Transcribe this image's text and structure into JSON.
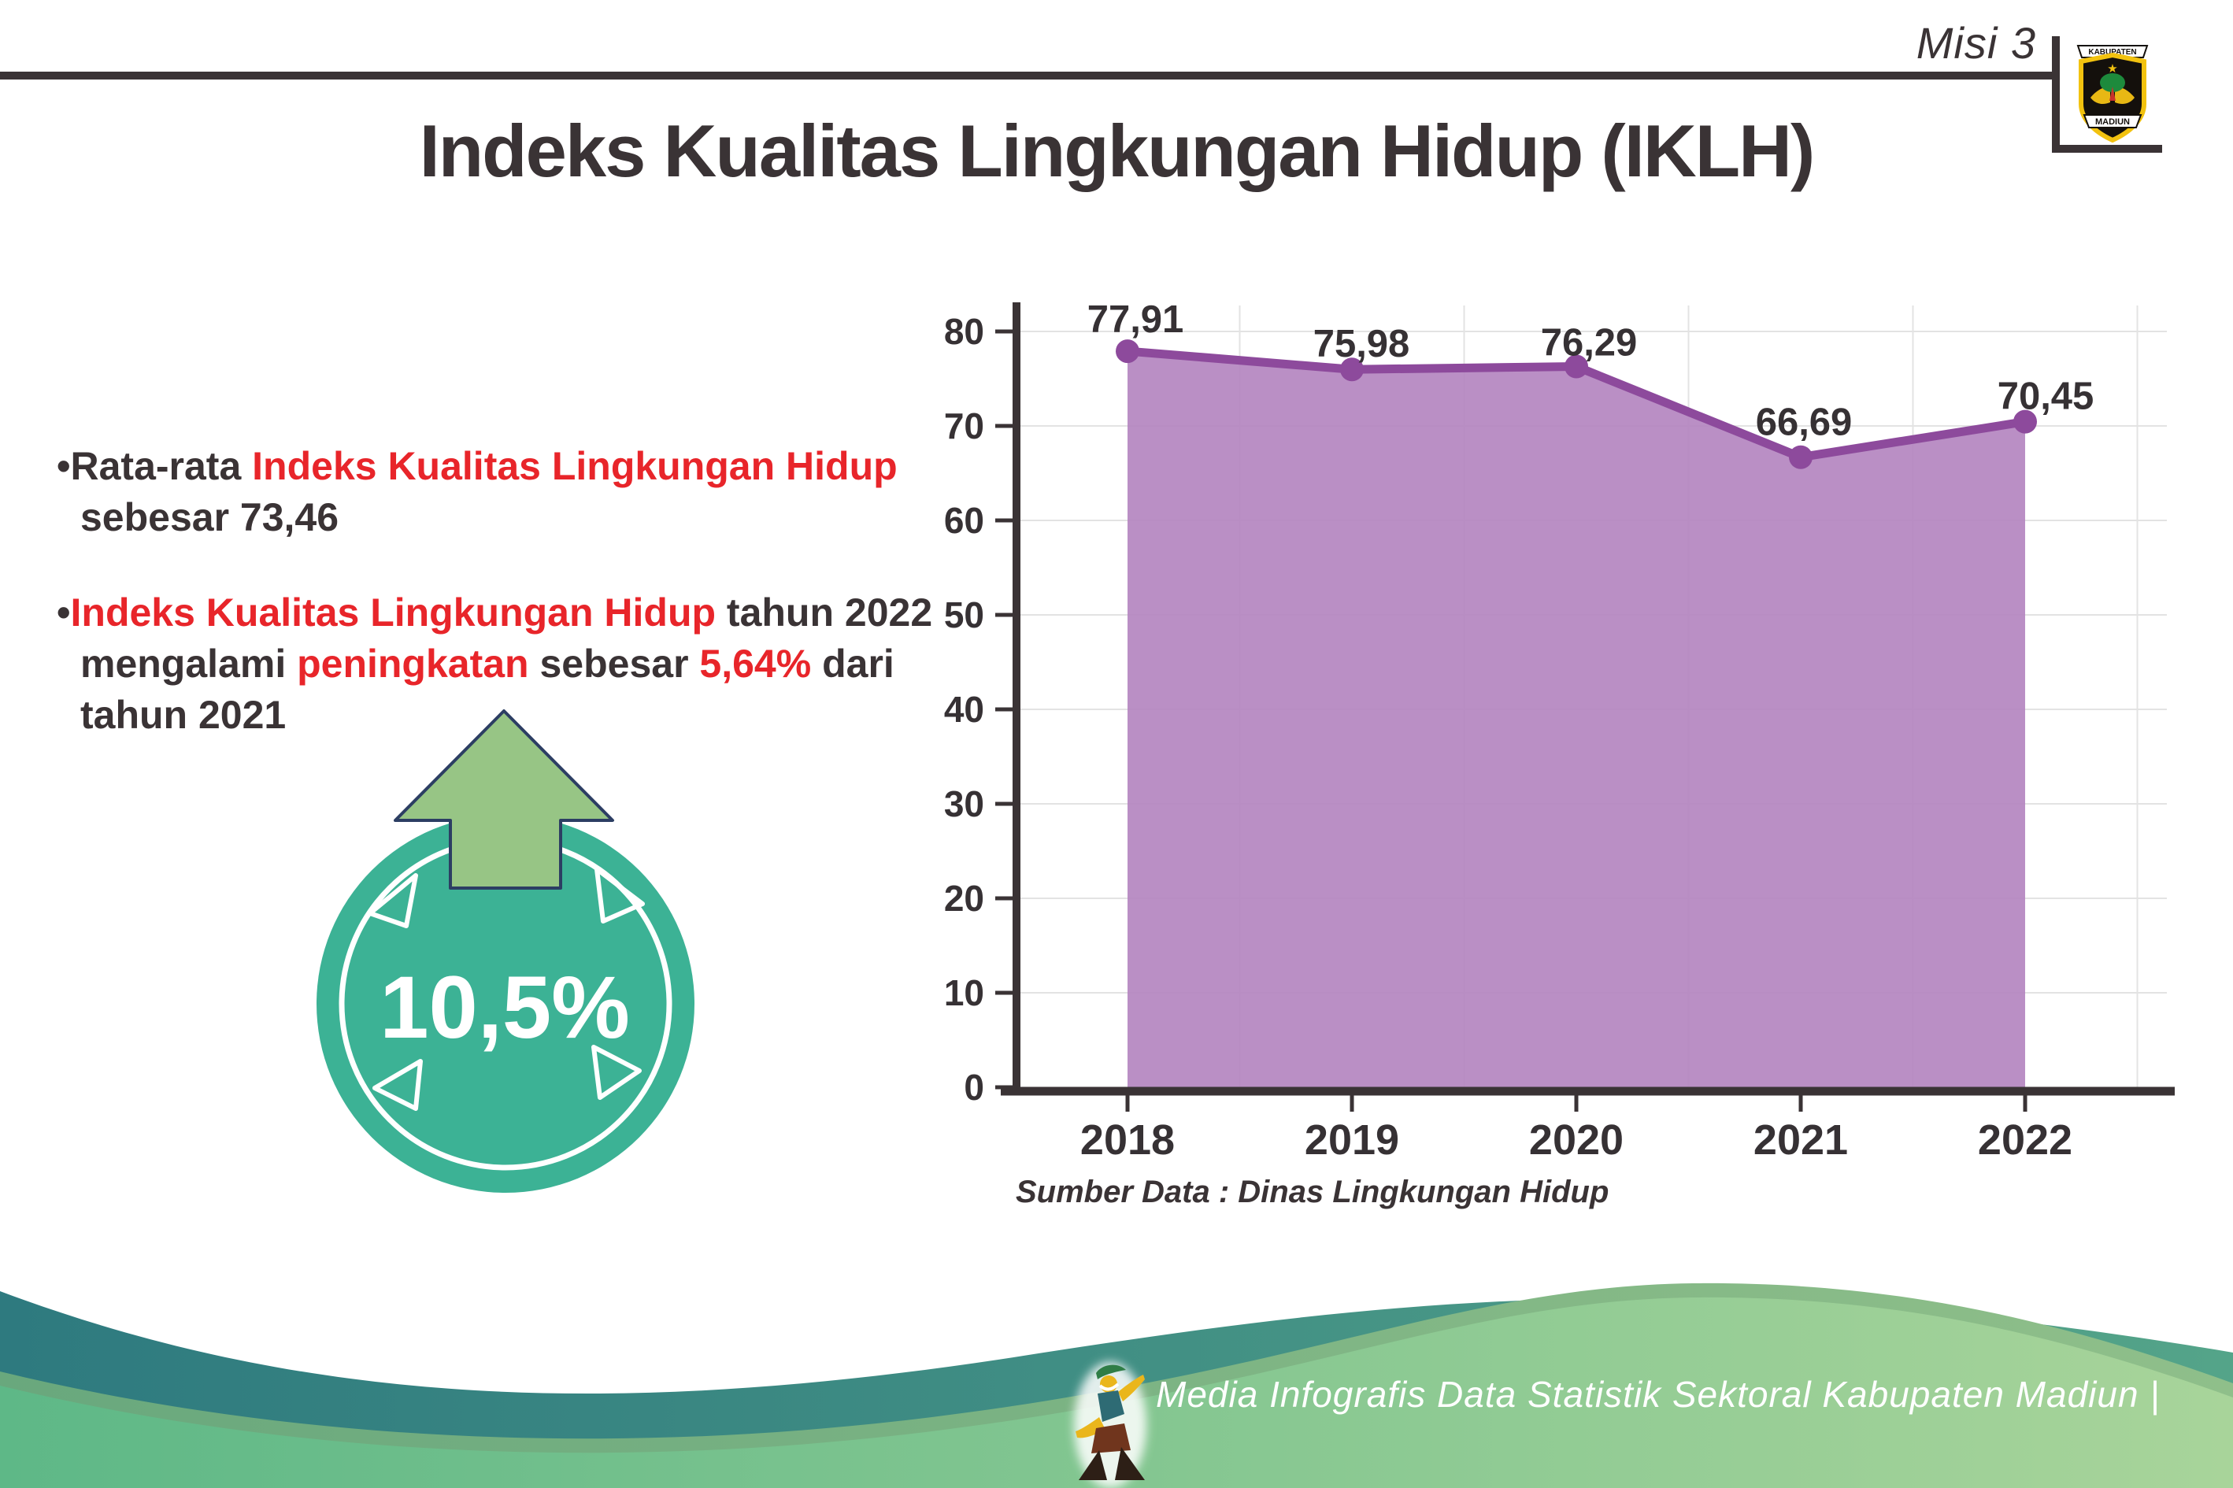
{
  "header": {
    "misi": "Misi 3",
    "logo": {
      "top": "KABUPATEN",
      "bottom": "MADIUN"
    }
  },
  "title": "Indeks Kualitas Lingkungan Hidup (IKLH)",
  "bullets": {
    "marker": "•",
    "items": [
      {
        "segments": [
          {
            "text": "Rata-rata ",
            "tone": "dark"
          },
          {
            "text": "Indeks Kualitas Lingkungan Hidup",
            "tone": "red"
          },
          {
            "text": " sebesar 73,46",
            "tone": "dark"
          }
        ]
      },
      {
        "segments": [
          {
            "text": "Indeks Kualitas Lingkungan Hidup",
            "tone": "red"
          },
          {
            "text": " tahun 2022 mengalami ",
            "tone": "dark"
          },
          {
            "text": "peningkatan",
            "tone": "red"
          },
          {
            "text": " sebesar ",
            "tone": "dark"
          },
          {
            "text": "5,64%",
            "tone": "red"
          },
          {
            "text": " dari tahun 2021",
            "tone": "dark"
          }
        ]
      }
    ]
  },
  "badge": {
    "value": "10,5%",
    "direction": "up",
    "circle_color": "#3cb295",
    "arrow_color": "#97c585",
    "arrow_outline": "#2c3e63"
  },
  "chart_data": {
    "type": "area",
    "categories": [
      "2018",
      "2019",
      "2020",
      "2021",
      "2022"
    ],
    "values": [
      77.91,
      75.98,
      76.29,
      66.69,
      70.45
    ],
    "point_labels": [
      "77,91",
      "75,98",
      "76,29",
      "66,69",
      "70,45"
    ],
    "title": "",
    "xlabel": "",
    "ylabel": "",
    "ylim": [
      0,
      80
    ],
    "yticks": [
      0,
      10,
      20,
      30,
      40,
      50,
      60,
      70,
      80
    ],
    "grid": true,
    "legend": "none",
    "source": "Sumber Data : Dinas Lingkungan Hidup",
    "colors": {
      "area": "#b587c1",
      "line": "#8d4a9c",
      "marker": "#8d4a9c",
      "axis": "#3a3335",
      "grid": "#e3e3e3",
      "label": "#363134"
    }
  },
  "footer": {
    "text": "Media Infografis Data Statistik Sektoral Kabupaten Madiun |",
    "wave_teal": "#2e7a7f",
    "wave_green_left": "#5eb887",
    "wave_green_right": "#a8d49a"
  }
}
